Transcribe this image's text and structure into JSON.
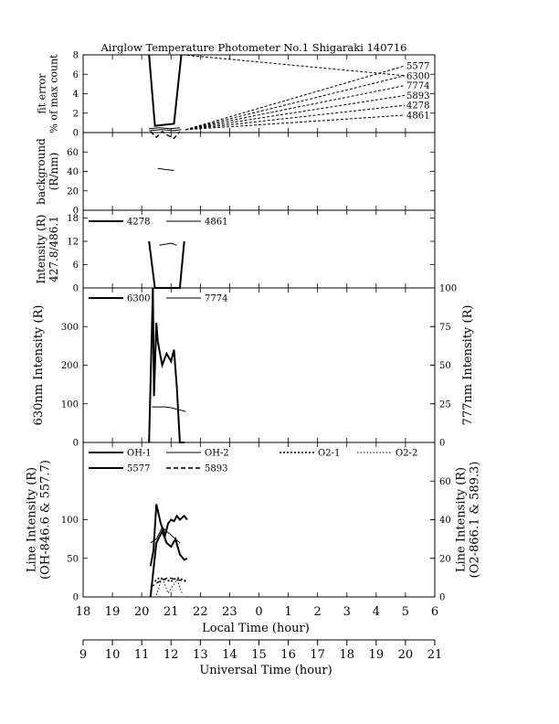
{
  "title": "Airglow Temperature Photometer No.1  Shigaraki  140716",
  "x_axes": {
    "local": {
      "label": "Local Time (hour)",
      "ticks": [
        "18",
        "19",
        "20",
        "21",
        "22",
        "23",
        "0",
        "1",
        "2",
        "3",
        "4",
        "5",
        "6"
      ],
      "range": [
        18,
        30
      ]
    },
    "universal": {
      "label": "Universal Time (hour)",
      "ticks": [
        "9",
        "10",
        "11",
        "12",
        "13",
        "14",
        "15",
        "16",
        "17",
        "18",
        "19",
        "20",
        "21"
      ],
      "range": [
        9,
        21
      ]
    }
  },
  "chart_data": [
    {
      "id": "fit_error",
      "type": "line",
      "ylabel": [
        "fit error",
        "% of max count"
      ],
      "ylim": [
        0,
        8
      ],
      "yticks": [
        0,
        2,
        4,
        6,
        8
      ],
      "legend": [
        "5577",
        "6300",
        "7774",
        "5893",
        "4278",
        "4861"
      ],
      "series": [
        {
          "name": "6300",
          "style": "solid-thick",
          "x": [
            20.25,
            20.45,
            21.1,
            21.35
          ],
          "y": [
            8,
            0.7,
            0.9,
            8
          ]
        },
        {
          "name": "5577",
          "style": "solid",
          "x": [
            20.25,
            20.6,
            21.0,
            21.3
          ],
          "y": [
            0.4,
            0.5,
            0.4,
            0.5
          ]
        },
        {
          "name": "7774",
          "style": "solid",
          "x": [
            20.25,
            20.7,
            21.1,
            21.35
          ],
          "y": [
            0.2,
            0.3,
            0.2,
            0.3
          ]
        },
        {
          "name": "5893",
          "style": "dashed",
          "x": [
            20.3,
            20.5,
            20.7,
            20.9,
            21.1,
            21.3
          ],
          "y": [
            0.1,
            -0.5,
            0.1,
            -0.3,
            -0.6,
            0.1
          ]
        }
      ]
    },
    {
      "id": "background",
      "type": "line",
      "ylabel": [
        "background",
        "(R/nm)"
      ],
      "ylim": [
        0,
        80
      ],
      "yticks": [
        0,
        20,
        40,
        60
      ],
      "series": [
        {
          "name": "background",
          "style": "solid",
          "x": [
            20.55,
            20.8,
            21.1
          ],
          "y": [
            43,
            42,
            41
          ]
        }
      ]
    },
    {
      "id": "intensity_427_486",
      "type": "line",
      "ylabel": [
        "Intensity (R)",
        "427.8/486.1"
      ],
      "ylim": [
        0,
        20
      ],
      "yticks": [
        0,
        6,
        12,
        18
      ],
      "series": [
        {
          "name": "4278",
          "style": "solid-thick",
          "x": [
            20.25,
            20.45,
            21.3,
            21.45
          ],
          "y": [
            12,
            0,
            0,
            12
          ]
        },
        {
          "name": "4861",
          "style": "solid",
          "x": [
            20.6,
            21.0,
            21.2
          ],
          "y": [
            11,
            11.5,
            11
          ]
        }
      ]
    },
    {
      "id": "intensity_630_777",
      "type": "line",
      "ylabel_left": "630nm Intensity (R)",
      "ylabel_right": "777nm Intensity (R)",
      "ylim_left": [
        0,
        400
      ],
      "yticks_left": [
        0,
        100,
        200,
        300
      ],
      "ylim_right": [
        0,
        100
      ],
      "yticks_right": [
        0,
        25,
        50,
        75,
        100
      ],
      "series": [
        {
          "name": "6300",
          "axis": "left",
          "style": "solid-thick",
          "x": [
            20.25,
            20.38,
            20.42,
            20.5,
            20.55,
            20.7,
            20.85,
            21.0,
            21.1,
            21.2,
            21.3,
            21.45
          ],
          "y": [
            0,
            400,
            120,
            310,
            260,
            200,
            230,
            210,
            240,
            140,
            0,
            0
          ]
        },
        {
          "name": "7774",
          "axis": "right",
          "style": "solid",
          "x": [
            20.35,
            20.5,
            20.8,
            21.0,
            21.3,
            21.5
          ],
          "y": [
            23,
            23,
            23,
            22.5,
            21,
            20
          ]
        }
      ]
    },
    {
      "id": "line_intensity",
      "type": "line",
      "ylabel_left": [
        "Line Intensity (R)",
        "(OH-846.6 & 557.7)"
      ],
      "ylabel_right": [
        "Line Intensity (R)",
        "(O2-866.1 & 589.3)"
      ],
      "ylim_left": [
        0,
        200
      ],
      "yticks_left": [
        0,
        50,
        100
      ],
      "ylim_right": [
        0,
        80
      ],
      "yticks_right": [
        0,
        20,
        40,
        60
      ],
      "series": [
        {
          "name": "OH-1",
          "axis": "left",
          "style": "solid-thick",
          "x": [
            20.3,
            20.4,
            20.5,
            20.65,
            20.8,
            20.9,
            21.0,
            21.1,
            21.2,
            21.3,
            21.45,
            21.55
          ],
          "y": [
            40,
            60,
            120,
            95,
            80,
            95,
            100,
            98,
            105,
            100,
            105,
            100
          ]
        },
        {
          "name": "OH-2",
          "axis": "left",
          "style": "solid",
          "x": [
            20.3,
            20.5,
            20.7,
            21.0,
            21.3
          ],
          "y": [
            70,
            75,
            90,
            80,
            70
          ]
        },
        {
          "name": "5577",
          "axis": "left",
          "style": "solid-thick",
          "x": [
            20.3,
            20.5,
            20.7,
            20.85,
            21.0,
            21.15,
            21.3,
            21.45,
            21.55
          ],
          "y": [
            0,
            70,
            85,
            70,
            65,
            75,
            55,
            48,
            50
          ]
        },
        {
          "name": "5893",
          "axis": "right",
          "style": "dashed",
          "x": [
            20.3,
            20.6,
            20.9,
            21.2,
            21.5
          ],
          "y": [
            5,
            8,
            10,
            9,
            8
          ]
        },
        {
          "name": "O2-1",
          "axis": "right",
          "style": "dotted",
          "x": [
            20.45,
            20.6,
            20.8,
            21.0,
            21.2,
            21.4,
            21.55
          ],
          "y": [
            8,
            10,
            9,
            8,
            10,
            9,
            8
          ]
        },
        {
          "name": "O2-2",
          "axis": "right",
          "style": "dotted-thin",
          "x": [
            20.5,
            20.7,
            20.9,
            21.2,
            21.4
          ],
          "y": [
            1,
            10,
            2,
            9,
            1
          ]
        }
      ]
    }
  ],
  "panel_legends": {
    "intensity_427_486": [
      "4278",
      "4861"
    ],
    "intensity_630_777": [
      "6300",
      "7774"
    ],
    "line_intensity": [
      "OH-1",
      "OH-2",
      "O2-1",
      "O2-2",
      "5577",
      "5893"
    ]
  }
}
